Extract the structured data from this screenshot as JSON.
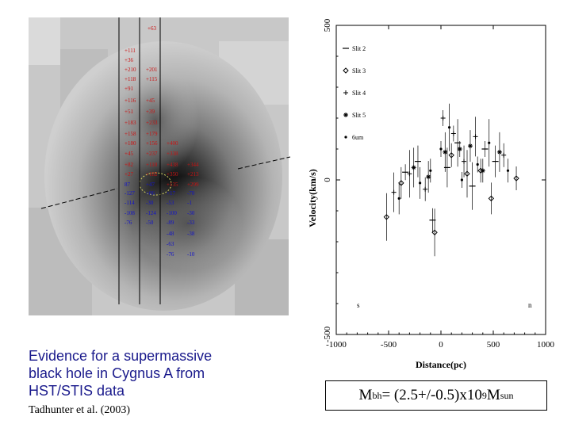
{
  "caption": {
    "line1": "Evidence for a supermassive",
    "line2": "black hole in Cygnus A from",
    "line3": "HST/STIS data"
  },
  "citation": "Tadhunter et al. (2003)",
  "formula": {
    "m": "M",
    "bh": "bh",
    "mid": " = (2.5+/-0.5)x10",
    "exp": "9",
    "m2": " M",
    "sun": "sun"
  },
  "image_labels": {
    "red": [
      "+63",
      "+111",
      "+36",
      "+210",
      "+201",
      "+118",
      "+115",
      "+91",
      "+116",
      "+45",
      "+51",
      "+39",
      "+183",
      "+233",
      "+158",
      "+179",
      "+180",
      "+156",
      "+400",
      "+45",
      "+237",
      "+338",
      "+82",
      "+110",
      "+438",
      "+344",
      "+27",
      "+182",
      "+350",
      "+213",
      "+135",
      "+299"
    ],
    "blue": [
      "87",
      "+47",
      "-127",
      "+86",
      "+17",
      "-70",
      "-114",
      "-30",
      "-53",
      "-1",
      "-108",
      "-124",
      "-100",
      "-30",
      "-76",
      "-50",
      "-89",
      "-33",
      "-48",
      "-38",
      "-63",
      "-76",
      "-10"
    ]
  },
  "chart_data": {
    "type": "scatter",
    "xlabel": "Distance(pc)",
    "ylabel": "Velocity(km/s)",
    "xlim": [
      -1000,
      1000
    ],
    "ylim": [
      -500,
      500
    ],
    "xticks": [
      "-1000",
      "-500",
      "0",
      "500",
      "1000"
    ],
    "yticks": [
      "-500",
      "0",
      "500"
    ],
    "panel_labels": {
      "left": "s",
      "right": "n"
    },
    "legend": [
      "Slit 2",
      "Slit 3",
      "Slit 4",
      "Slit 5",
      "6um"
    ],
    "series": [
      {
        "name": "Slit 2",
        "marker": "bar",
        "points": [
          [
            -340,
            25
          ],
          [
            -220,
            60
          ],
          [
            -80,
            -130
          ],
          [
            60,
            40
          ],
          [
            160,
            120
          ],
          [
            300,
            -20
          ],
          [
            420,
            100
          ],
          [
            520,
            60
          ]
        ]
      },
      {
        "name": "Slit 3",
        "marker": "diamond",
        "points": [
          [
            -520,
            -120
          ],
          [
            -380,
            -10
          ],
          [
            -60,
            -170
          ],
          [
            100,
            80
          ],
          [
            250,
            20
          ],
          [
            380,
            30
          ],
          [
            480,
            -60
          ],
          [
            720,
            5
          ]
        ]
      },
      {
        "name": "Slit 4",
        "marker": "plus",
        "points": [
          [
            -450,
            -40
          ],
          [
            -300,
            20
          ],
          [
            -150,
            -30
          ],
          [
            20,
            200
          ],
          [
            120,
            150
          ],
          [
            220,
            60
          ],
          [
            330,
            140
          ],
          [
            600,
            80
          ]
        ]
      },
      {
        "name": "Slit 5",
        "marker": "star",
        "points": [
          [
            -260,
            40
          ],
          [
            -120,
            10
          ],
          [
            40,
            90
          ],
          [
            180,
            100
          ],
          [
            280,
            110
          ],
          [
            400,
            30
          ],
          [
            560,
            90
          ]
        ]
      },
      {
        "name": "6um",
        "marker": "dot",
        "points": [
          [
            -400,
            -60
          ],
          [
            -200,
            -10
          ],
          [
            -100,
            30
          ],
          [
            0,
            100
          ],
          [
            80,
            170
          ],
          [
            200,
            0
          ],
          [
            350,
            50
          ],
          [
            460,
            120
          ],
          [
            640,
            30
          ]
        ]
      }
    ]
  }
}
